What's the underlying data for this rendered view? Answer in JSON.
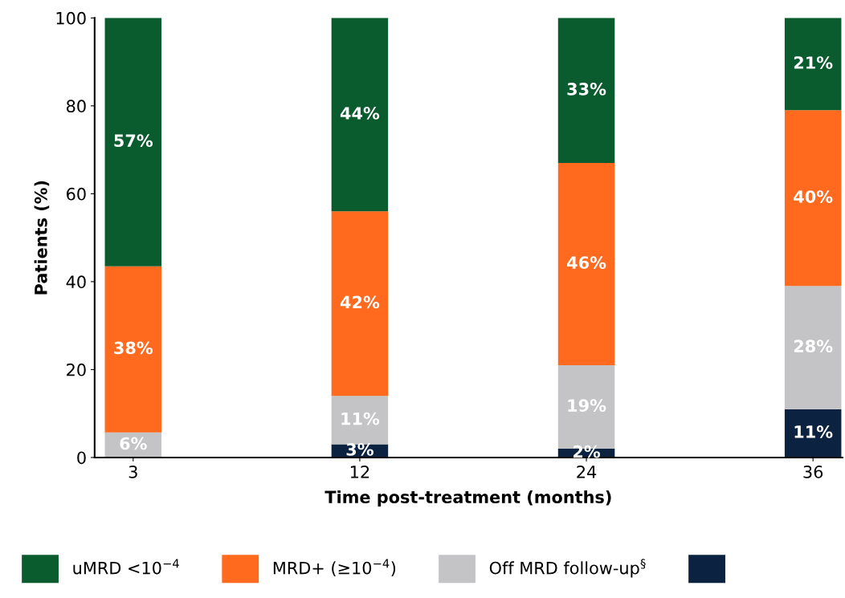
{
  "chart_data": {
    "type": "bar",
    "stacked": true,
    "xlabel": "Time post-treatment (months)",
    "ylabel": "Patients (%)",
    "categories": [
      "3",
      "12",
      "24",
      "36"
    ],
    "series": [
      {
        "color": "#0b2340",
        "values": [
          null,
          3,
          2,
          11
        ],
        "value_labels": [
          null,
          "3%",
          "2%",
          "11%"
        ]
      },
      {
        "name": "Off MRD follow-up$^{§}$",
        "color": "#c4c4c6",
        "values": [
          5.7,
          11,
          19,
          28
        ],
        "value_labels": [
          "6%",
          "11%",
          "19%",
          "28%"
        ]
      },
      {
        "name": "MRD+ (≥10$^{−4}$)",
        "color": "#ff6a1f",
        "values": [
          37.8,
          42,
          46,
          40
        ],
        "value_labels": [
          "38%",
          "42%",
          "46%",
          "40%"
        ]
      },
      {
        "name": "uMRD <10$^{−4}$",
        "color": "#0a5c2e",
        "values": [
          56.5,
          44,
          33,
          21
        ],
        "value_labels": [
          "57%",
          "44%",
          "33%",
          "21%"
        ]
      }
    ],
    "ylim": [
      0,
      100
    ],
    "yticks": [
      0,
      20,
      40,
      60,
      80,
      100
    ],
    "grid": false,
    "legend": "bottom"
  }
}
